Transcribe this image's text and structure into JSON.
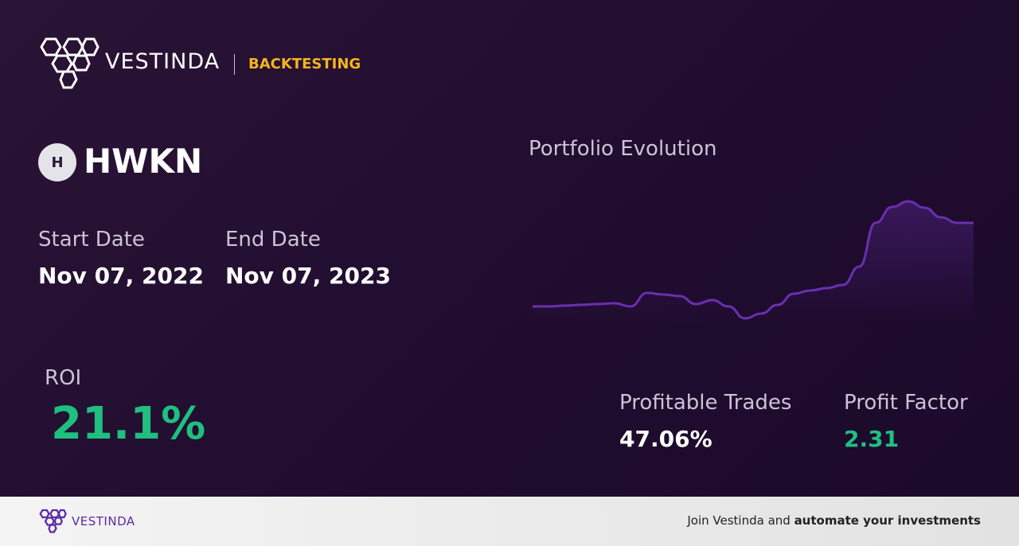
{
  "brand": "VESTINDA",
  "section": "BACKTESTING",
  "ticker_icon": "H",
  "ticker": "HWKN",
  "start_date_label": "Start Date",
  "start_date": "Nov 07, 2022",
  "end_date_label": "End Date",
  "end_date": "Nov 07, 2023",
  "roi_label": "ROI",
  "roi": "21.1%",
  "profitable_trades_label": "Profitable Trades",
  "profitable_trades": "47.06%",
  "profit_factor_label": "Profit Factor",
  "profit_factor": "2.31",
  "footer": {
    "brand": "VESTINDA",
    "text": "Join Vestinda and ",
    "emphasis": "automate your investments"
  },
  "chart_data": {
    "type": "line",
    "title": "Portfolio Evolution",
    "color": "#6a2fb0",
    "values": [
      20,
      20,
      21,
      22,
      23,
      24,
      20,
      37,
      35,
      33,
      23,
      28,
      20,
      5,
      11,
      22,
      36,
      40,
      43,
      47,
      70,
      125,
      145,
      152,
      144,
      132,
      125,
      125
    ],
    "ylim": [
      0,
      160
    ]
  }
}
